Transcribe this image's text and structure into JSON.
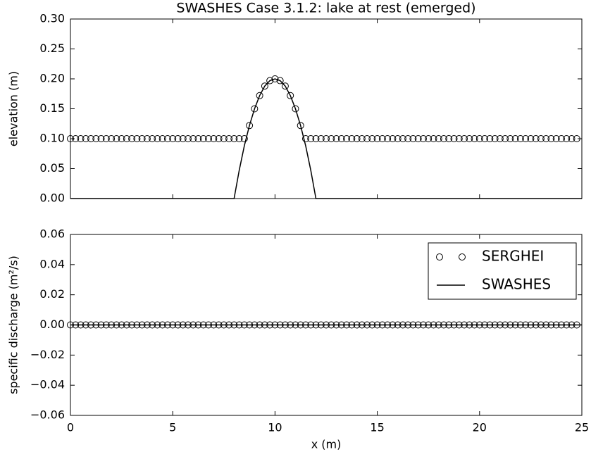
{
  "chart_data": [
    {
      "type": "line",
      "title": "SWASHES Case 3.1.2: lake at rest (emerged)",
      "y_label": "elevation (m)",
      "xlim": [
        0,
        25
      ],
      "xticks": [
        0,
        5,
        10,
        15,
        20,
        25
      ],
      "show_xtick_labels": false,
      "ylim": [
        0,
        0.3
      ],
      "yticks": [
        {
          "value": 0,
          "label": "0.00"
        },
        {
          "value": 0.05,
          "label": "0.05"
        },
        {
          "value": 0.1,
          "label": "0.10"
        },
        {
          "value": 0.15,
          "label": "0.15"
        },
        {
          "value": 0.2,
          "label": "0.20"
        },
        {
          "value": 0.25,
          "label": "0.25"
        },
        {
          "value": 0.3,
          "label": "0.30"
        }
      ],
      "series": [
        {
          "color": "#000000",
          "marker": "o",
          "linestyle": "none",
          "x": [
            0,
            0.25,
            0.5,
            0.75,
            1,
            1.25,
            1.5,
            1.75,
            2,
            2.25,
            2.5,
            2.75,
            3,
            3.25,
            3.5,
            3.75,
            4,
            4.25,
            4.5,
            4.75,
            5,
            5.25,
            5.5,
            5.75,
            6,
            6.25,
            6.5,
            6.75,
            7,
            7.25,
            7.5,
            7.75,
            8,
            8.25,
            8.5,
            8.75,
            9,
            9.25,
            9.5,
            9.75,
            10,
            10.25,
            10.5,
            10.75,
            11,
            11.25,
            11.5,
            11.75,
            12,
            12.25,
            12.5,
            12.75,
            13,
            13.25,
            13.5,
            13.75,
            14,
            14.25,
            14.5,
            14.75,
            15,
            15.25,
            15.5,
            15.75,
            16,
            16.25,
            16.5,
            16.75,
            17,
            17.25,
            17.5,
            17.75,
            18,
            18.25,
            18.5,
            18.75,
            19,
            19.25,
            19.5,
            19.75,
            20,
            20.25,
            20.5,
            20.75,
            21,
            21.25,
            21.5,
            21.75,
            22,
            22.25,
            22.5,
            22.75,
            23,
            23.25,
            23.5,
            23.75,
            24,
            24.25,
            24.5,
            24.75
          ],
          "values": [
            0.1,
            0.1,
            0.1,
            0.1,
            0.1,
            0.1,
            0.1,
            0.1,
            0.1,
            0.1,
            0.1,
            0.1,
            0.1,
            0.1,
            0.1,
            0.1,
            0.1,
            0.1,
            0.1,
            0.1,
            0.1,
            0.1,
            0.1,
            0.1,
            0.1,
            0.1,
            0.1,
            0.1,
            0.1,
            0.1,
            0.1,
            0.1,
            0.1,
            0.1,
            0.1,
            0.122,
            0.15,
            0.172,
            0.188,
            0.197,
            0.2,
            0.197,
            0.188,
            0.172,
            0.15,
            0.122,
            0.1,
            0.1,
            0.1,
            0.1,
            0.1,
            0.1,
            0.1,
            0.1,
            0.1,
            0.1,
            0.1,
            0.1,
            0.1,
            0.1,
            0.1,
            0.1,
            0.1,
            0.1,
            0.1,
            0.1,
            0.1,
            0.1,
            0.1,
            0.1,
            0.1,
            0.1,
            0.1,
            0.1,
            0.1,
            0.1,
            0.1,
            0.1,
            0.1,
            0.1,
            0.1,
            0.1,
            0.1,
            0.1,
            0.1,
            0.1,
            0.1,
            0.1,
            0.1,
            0.1,
            0.1,
            0.1,
            0.1,
            0.1,
            0.1,
            0.1,
            0.1,
            0.1,
            0.1,
            0.1
          ]
        },
        {
          "color": "#000000",
          "linestyle": "solid",
          "x": [
            0,
            8,
            8.25,
            8.5,
            8.75,
            9,
            9.25,
            9.5,
            9.75,
            10,
            10.25,
            10.5,
            10.75,
            11,
            11.25,
            11.5,
            11.75,
            12,
            25
          ],
          "values": [
            0,
            0,
            0.047,
            0.088,
            0.122,
            0.15,
            0.172,
            0.188,
            0.197,
            0.2,
            0.197,
            0.188,
            0.172,
            0.15,
            0.122,
            0.088,
            0.047,
            0,
            0
          ]
        }
      ]
    },
    {
      "type": "line",
      "x_label": "x (m)",
      "y_label": "specific discharge (m²/s)",
      "xlim": [
        0,
        25
      ],
      "xticks": [
        0,
        5,
        10,
        15,
        20,
        25
      ],
      "show_xtick_labels": true,
      "ylim": [
        -0.06,
        0.06
      ],
      "yticks": [
        {
          "value": -0.06,
          "label": "−0.06"
        },
        {
          "value": -0.04,
          "label": "−0.04"
        },
        {
          "value": -0.02,
          "label": "−0.02"
        },
        {
          "value": 0,
          "label": "0.00"
        },
        {
          "value": 0.02,
          "label": "0.02"
        },
        {
          "value": 0.04,
          "label": "0.04"
        },
        {
          "value": 0.06,
          "label": "0.06"
        }
      ],
      "legend": "upper right",
      "series": [
        {
          "name": "SERGHEI",
          "color": "#000000",
          "marker": "o",
          "linestyle": "none",
          "x": [
            0,
            0.25,
            0.5,
            0.75,
            1,
            1.25,
            1.5,
            1.75,
            2,
            2.25,
            2.5,
            2.75,
            3,
            3.25,
            3.5,
            3.75,
            4,
            4.25,
            4.5,
            4.75,
            5,
            5.25,
            5.5,
            5.75,
            6,
            6.25,
            6.5,
            6.75,
            7,
            7.25,
            7.5,
            7.75,
            8,
            8.25,
            8.5,
            8.75,
            9,
            9.25,
            9.5,
            9.75,
            10,
            10.25,
            10.5,
            10.75,
            11,
            11.25,
            11.5,
            11.75,
            12,
            12.25,
            12.5,
            12.75,
            13,
            13.25,
            13.5,
            13.75,
            14,
            14.25,
            14.5,
            14.75,
            15,
            15.25,
            15.5,
            15.75,
            16,
            16.25,
            16.5,
            16.75,
            17,
            17.25,
            17.5,
            17.75,
            18,
            18.25,
            18.5,
            18.75,
            19,
            19.25,
            19.5,
            19.75,
            20,
            20.25,
            20.5,
            20.75,
            21,
            21.25,
            21.5,
            21.75,
            22,
            22.25,
            22.5,
            22.75,
            23,
            23.25,
            23.5,
            23.75,
            24,
            24.25,
            24.5,
            24.75
          ],
          "values": [
            0,
            0,
            0,
            0,
            0,
            0,
            0,
            0,
            0,
            0,
            0,
            0,
            0,
            0,
            0,
            0,
            0,
            0,
            0,
            0,
            0,
            0,
            0,
            0,
            0,
            0,
            0,
            0,
            0,
            0,
            0,
            0,
            0,
            0,
            0,
            0,
            0,
            0,
            0,
            0,
            0,
            0,
            0,
            0,
            0,
            0,
            0,
            0,
            0,
            0,
            0,
            0,
            0,
            0,
            0,
            0,
            0,
            0,
            0,
            0,
            0,
            0,
            0,
            0,
            0,
            0,
            0,
            0,
            0,
            0,
            0,
            0,
            0,
            0,
            0,
            0,
            0,
            0,
            0,
            0,
            0,
            0,
            0,
            0,
            0,
            0,
            0,
            0,
            0,
            0,
            0,
            0,
            0,
            0,
            0,
            0,
            0,
            0,
            0,
            0
          ]
        },
        {
          "name": "SWASHES",
          "color": "#000000",
          "linestyle": "solid",
          "x": [
            0,
            25
          ],
          "values": [
            0,
            0
          ]
        }
      ]
    }
  ]
}
